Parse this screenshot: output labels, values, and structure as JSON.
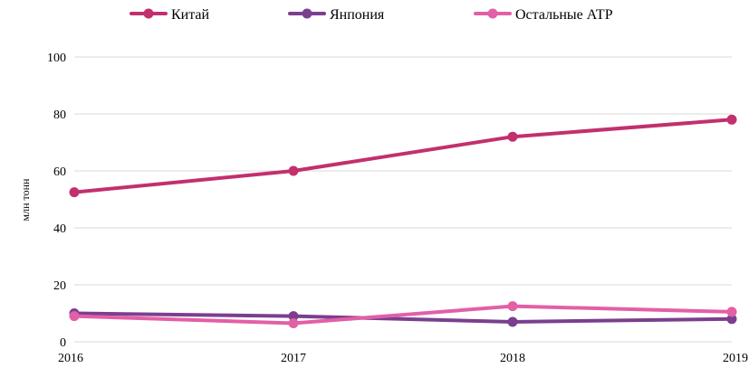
{
  "chart_data": {
    "type": "line",
    "title": "",
    "xlabel": "",
    "ylabel": "млн тонн",
    "x": [
      "2016",
      "2017",
      "2018",
      "2019"
    ],
    "ylim": [
      0,
      100
    ],
    "yticks": [
      "0",
      "20",
      "40",
      "60",
      "80",
      "100"
    ],
    "grid": true,
    "legend_position": "top",
    "series": [
      {
        "name": "Китай",
        "color": "#c2306e",
        "values": [
          52.5,
          60,
          72,
          78
        ]
      },
      {
        "name": "Янпония",
        "color": "#7b3f8f",
        "values": [
          10,
          9,
          7,
          8
        ]
      },
      {
        "name": "Остальные АТР",
        "color": "#e35fa6",
        "values": [
          9,
          6.5,
          12.5,
          10.5
        ]
      }
    ]
  }
}
